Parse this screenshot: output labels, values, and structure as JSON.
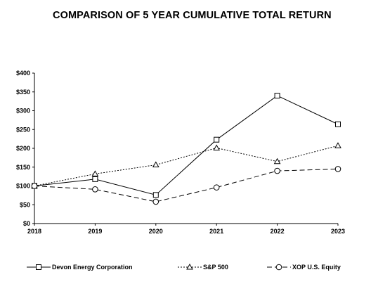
{
  "chart_data": {
    "type": "line",
    "title": "COMPARISON OF 5 YEAR CUMULATIVE TOTAL RETURN",
    "xlabel": "",
    "ylabel": "",
    "categories": [
      "2018",
      "2019",
      "2020",
      "2021",
      "2022",
      "2023"
    ],
    "y_ticks": [
      "$0",
      "$50",
      "$100",
      "$150",
      "$200",
      "$250",
      "$300",
      "$350",
      "$400"
    ],
    "ylim": [
      0,
      400
    ],
    "grid": false,
    "legend_position": "bottom",
    "series": [
      {
        "name": "Devon Energy Corporation",
        "marker": "square",
        "dash": "solid",
        "color": "#000000",
        "values": [
          100,
          118,
          76,
          223,
          340,
          264
        ]
      },
      {
        "name": "S&P 500",
        "marker": "triangle",
        "dash": "dotted",
        "color": "#000000",
        "values": [
          100,
          132,
          156,
          201,
          165,
          207
        ]
      },
      {
        "name": "XOP U.S. Equity",
        "marker": "circle",
        "dash": "dashed",
        "color": "#000000",
        "values": [
          100,
          91,
          58,
          96,
          140,
          145
        ]
      }
    ]
  }
}
